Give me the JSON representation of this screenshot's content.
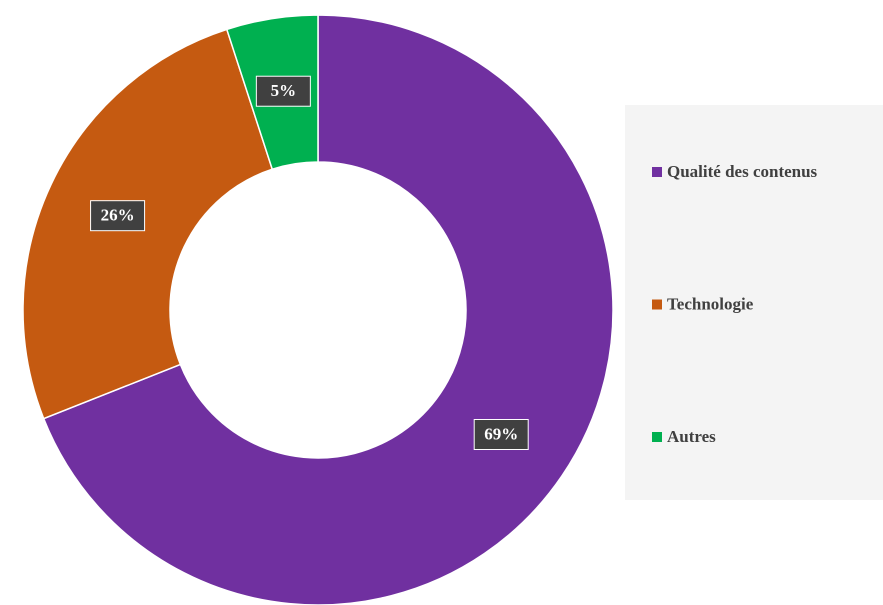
{
  "chart_data": {
    "type": "donut",
    "categories": [
      "Qualité des contenus",
      "Technologie",
      "Autres"
    ],
    "values": [
      69,
      26,
      5
    ],
    "value_labels": [
      "69%",
      "26%",
      "5%"
    ],
    "colors": [
      "#7030a0",
      "#c55a11",
      "#00b050"
    ],
    "legend": "right"
  }
}
